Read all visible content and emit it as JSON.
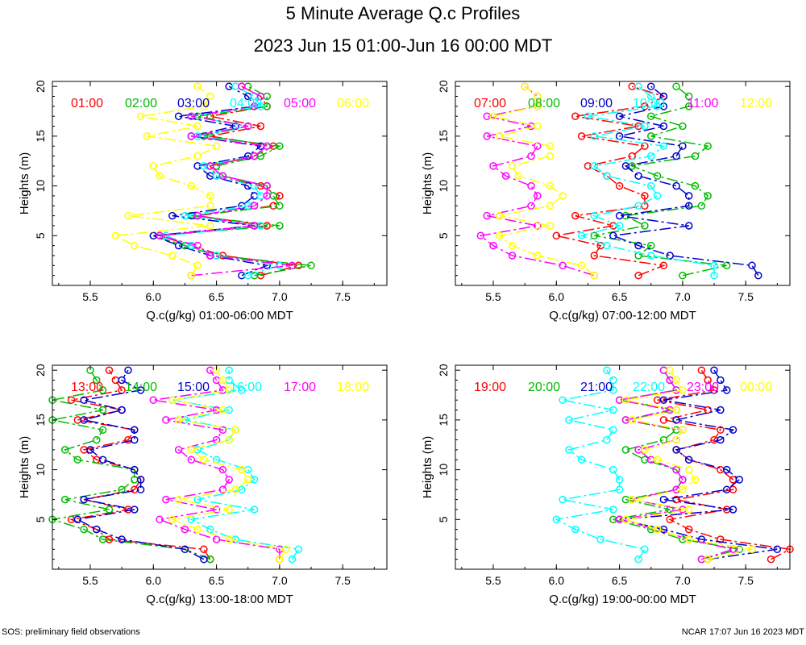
{
  "title": "5 Minute Average Q.c Profiles",
  "subtitle": "2023 Jun 15 01:00-Jun 16 00:00 MDT",
  "footer_left": "SOS: preliminary field observations",
  "footer_right": "NCAR 17:07 Jun 16 2023 MDT",
  "series_colors": [
    "#ff0000",
    "#00bb00",
    "#0000cc",
    "#00ffff",
    "#ff00ff",
    "#ffff00"
  ],
  "chart_data": [
    {
      "type": "line",
      "xlabel": "Q.c(g/kg) 01:00-06:00 MDT",
      "ylabel": "Heights (m)",
      "xlim": [
        5.2,
        7.85
      ],
      "ylim": [
        0,
        20.5
      ],
      "xticks": [
        "5.5",
        "6.0",
        "6.5",
        "7.0",
        "7.5"
      ],
      "yticks": [
        "5",
        "10",
        "15",
        "20"
      ],
      "heights": [
        1,
        2,
        3,
        4,
        5,
        6,
        7,
        8,
        9,
        10,
        11,
        12,
        13,
        14,
        15,
        16,
        17,
        18,
        19,
        20
      ],
      "series": [
        {
          "name": "01:00",
          "values": [
            6.85,
            7.15,
            6.55,
            6.3,
            6.05,
            6.9,
            6.35,
            6.95,
            7.0,
            6.85,
            6.5,
            6.45,
            6.8,
            6.95,
            6.45,
            6.85,
            6.45,
            6.9,
            6.85,
            6.7
          ]
        },
        {
          "name": "02:00",
          "values": [
            6.8,
            7.25,
            6.5,
            6.25,
            6.0,
            7.0,
            6.3,
            7.0,
            6.95,
            6.9,
            6.55,
            6.5,
            6.85,
            7.0,
            6.4,
            6.75,
            6.35,
            6.9,
            6.9,
            6.75
          ]
        },
        {
          "name": "03:00",
          "values": [
            6.7,
            6.9,
            6.45,
            6.2,
            6.0,
            6.8,
            6.15,
            6.7,
            6.8,
            6.75,
            6.45,
            6.35,
            6.75,
            6.85,
            6.3,
            6.65,
            6.2,
            6.8,
            6.75,
            6.6
          ]
        },
        {
          "name": "04:00",
          "values": [
            6.75,
            7.0,
            6.5,
            6.3,
            6.1,
            6.85,
            6.25,
            6.75,
            6.85,
            6.8,
            6.5,
            6.4,
            6.8,
            6.9,
            6.35,
            6.75,
            6.3,
            6.85,
            6.8,
            6.65
          ]
        },
        {
          "name": "05:00",
          "values": [
            6.3,
            7.1,
            6.45,
            6.35,
            6.05,
            6.8,
            6.35,
            6.8,
            6.9,
            6.9,
            6.55,
            6.45,
            6.8,
            6.9,
            6.3,
            6.75,
            6.3,
            6.8,
            6.85,
            6.7
          ]
        },
        {
          "name": "06:00",
          "values": [
            6.3,
            6.35,
            6.15,
            5.85,
            5.7,
            6.45,
            5.8,
            6.45,
            6.45,
            6.3,
            6.05,
            6.0,
            6.35,
            6.5,
            5.95,
            6.35,
            5.9,
            6.4,
            6.45,
            6.35
          ]
        }
      ]
    },
    {
      "type": "line",
      "xlabel": "Q.c(g/kg) 07:00-12:00 MDT",
      "ylabel": "Heights (m)",
      "xlim": [
        5.2,
        7.85
      ],
      "ylim": [
        0,
        20.5
      ],
      "xticks": [
        "5.5",
        "6.0",
        "6.5",
        "7.0",
        "7.5"
      ],
      "yticks": [
        "5",
        "10",
        "15",
        "20"
      ],
      "heights": [
        1,
        2,
        3,
        4,
        5,
        6,
        7,
        8,
        9,
        10,
        11,
        12,
        13,
        14,
        15,
        16,
        17,
        18,
        19,
        20
      ],
      "series": [
        {
          "name": "07:00",
          "values": [
            6.65,
            6.85,
            6.3,
            6.35,
            6.0,
            6.45,
            6.15,
            6.7,
            6.7,
            6.5,
            6.4,
            6.25,
            6.6,
            6.7,
            6.2,
            6.65,
            6.15,
            6.7,
            6.85,
            6.6
          ]
        },
        {
          "name": "08:00",
          "values": [
            7.0,
            7.35,
            6.65,
            6.75,
            6.3,
            6.7,
            6.55,
            7.15,
            7.2,
            7.1,
            6.8,
            6.6,
            7.1,
            7.2,
            6.75,
            7.0,
            6.75,
            7.05,
            7.05,
            6.95
          ]
        },
        {
          "name": "09:00",
          "values": [
            7.6,
            7.55,
            6.9,
            6.65,
            6.45,
            7.05,
            6.5,
            7.05,
            7.05,
            6.95,
            6.65,
            6.55,
            6.95,
            7.0,
            6.5,
            6.85,
            6.5,
            6.85,
            6.85,
            6.75
          ]
        },
        {
          "name": "10:00",
          "values": [
            7.25,
            7.25,
            6.75,
            6.4,
            6.2,
            6.5,
            6.3,
            6.65,
            6.8,
            6.75,
            6.4,
            6.3,
            6.75,
            6.85,
            6.3,
            6.7,
            6.25,
            6.8,
            6.75,
            6.65
          ]
        },
        {
          "name": "11:00",
          "values": [
            6.3,
            6.05,
            5.65,
            5.5,
            5.4,
            5.85,
            5.45,
            5.8,
            5.85,
            5.8,
            5.6,
            5.5,
            5.8,
            5.85,
            5.45,
            5.8,
            5.45,
            5.85,
            5.85,
            5.75
          ]
        },
        {
          "name": "12:00",
          "values": [
            6.3,
            6.2,
            5.85,
            5.65,
            5.55,
            5.95,
            5.55,
            5.95,
            6.05,
            5.95,
            5.7,
            5.65,
            5.95,
            5.95,
            5.55,
            5.85,
            5.5,
            5.85,
            5.85,
            5.75
          ]
        }
      ]
    },
    {
      "type": "line",
      "xlabel": "Q.c(g/kg) 13:00-18:00 MDT",
      "ylabel": "Heights (m)",
      "xlim": [
        5.2,
        7.85
      ],
      "ylim": [
        0,
        20.5
      ],
      "xticks": [
        "5.5",
        "6.0",
        "6.5",
        "7.0",
        "7.5"
      ],
      "yticks": [
        "5",
        "10",
        "15",
        "20"
      ],
      "heights": [
        1,
        2,
        3,
        4,
        5,
        6,
        7,
        8,
        9,
        10,
        11,
        12,
        13,
        14,
        15,
        16,
        17,
        18,
        19,
        20
      ],
      "series": [
        {
          "name": "13:00",
          "values": [
            6.45,
            6.4,
            5.65,
            5.55,
            5.35,
            5.8,
            5.45,
            5.85,
            5.9,
            5.85,
            5.55,
            5.45,
            5.8,
            5.85,
            5.4,
            5.75,
            5.35,
            5.75,
            5.7,
            5.65
          ]
        },
        {
          "name": "14:00",
          "values": [
            6.45,
            6.25,
            5.6,
            5.45,
            5.2,
            5.65,
            5.3,
            5.75,
            5.85,
            5.85,
            5.4,
            5.3,
            5.55,
            5.6,
            5.2,
            5.6,
            5.2,
            5.6,
            5.55,
            5.5
          ]
        },
        {
          "name": "15:00",
          "values": [
            6.4,
            6.25,
            5.75,
            5.55,
            5.4,
            5.85,
            5.45,
            5.9,
            5.9,
            5.85,
            5.6,
            5.5,
            5.85,
            5.85,
            5.45,
            5.75,
            5.45,
            5.9,
            5.75,
            5.8
          ]
        },
        {
          "name": "16:00",
          "values": [
            7.1,
            7.15,
            6.65,
            6.45,
            6.3,
            6.8,
            6.35,
            6.7,
            6.8,
            6.75,
            6.5,
            6.35,
            6.6,
            6.65,
            6.25,
            6.6,
            6.15,
            6.7,
            6.6,
            6.6
          ]
        },
        {
          "name": "17:00",
          "values": [
            7.0,
            7.0,
            6.5,
            6.25,
            6.05,
            6.5,
            6.1,
            6.55,
            6.6,
            6.55,
            6.3,
            6.2,
            6.5,
            6.55,
            6.1,
            6.5,
            6.0,
            6.55,
            6.5,
            6.45
          ]
        },
        {
          "name": "18:00",
          "values": [
            7.0,
            7.05,
            6.6,
            6.35,
            6.15,
            6.6,
            6.2,
            6.65,
            6.75,
            6.7,
            6.4,
            6.3,
            6.6,
            6.65,
            6.2,
            6.55,
            6.15,
            6.6,
            6.55,
            6.5
          ]
        }
      ]
    },
    {
      "type": "line",
      "xlabel": "Q.c(g/kg) 19:00-00:00 MDT",
      "ylabel": "Heights (m)",
      "xlim": [
        5.2,
        7.85
      ],
      "ylim": [
        0,
        20.5
      ],
      "xticks": [
        "5.5",
        "6.0",
        "6.5",
        "7.0",
        "7.5"
      ],
      "yticks": [
        "5",
        "10",
        "15",
        "20"
      ],
      "heights": [
        1,
        2,
        3,
        4,
        5,
        6,
        7,
        8,
        9,
        10,
        11,
        12,
        13,
        14,
        15,
        16,
        17,
        18,
        19,
        20
      ],
      "series": [
        {
          "name": "19:00",
          "values": [
            7.7,
            7.85,
            7.3,
            7.05,
            6.9,
            7.35,
            6.95,
            7.4,
            7.4,
            7.3,
            7.05,
            6.95,
            7.25,
            7.3,
            6.85,
            7.2,
            6.8,
            7.25,
            7.2,
            7.15
          ]
        },
        {
          "name": "20:00",
          "values": [
            7.15,
            7.45,
            7.0,
            6.75,
            6.45,
            6.9,
            6.55,
            6.95,
            7.0,
            6.95,
            6.7,
            6.55,
            6.85,
            6.95,
            6.55,
            6.95,
            6.5,
            6.95,
            6.9,
            6.85
          ]
        },
        {
          "name": "21:00",
          "values": [
            7.2,
            7.75,
            7.15,
            6.85,
            6.5,
            7.4,
            6.85,
            7.35,
            7.45,
            7.35,
            7.05,
            6.95,
            7.3,
            7.4,
            6.95,
            7.3,
            6.85,
            7.35,
            7.3,
            7.25
          ]
        },
        {
          "name": "22:00",
          "values": [
            6.65,
            6.7,
            6.35,
            6.15,
            6.0,
            6.45,
            6.05,
            6.5,
            6.5,
            6.45,
            6.2,
            6.1,
            6.4,
            6.45,
            6.1,
            6.45,
            6.05,
            6.45,
            6.45,
            6.4
          ]
        },
        {
          "name": "23:00",
          "values": [
            7.15,
            7.4,
            7.05,
            6.8,
            6.5,
            7.0,
            6.6,
            6.95,
            7.0,
            6.95,
            6.75,
            6.65,
            6.95,
            7.0,
            6.55,
            6.9,
            6.5,
            6.95,
            6.9,
            6.85
          ]
        },
        {
          "name": "00:00",
          "values": [
            7.2,
            7.55,
            7.05,
            6.8,
            6.55,
            7.05,
            6.6,
            7.0,
            7.1,
            7.05,
            6.8,
            6.7,
            6.95,
            7.0,
            6.6,
            6.95,
            6.55,
            7.0,
            6.95,
            6.9
          ]
        }
      ]
    }
  ]
}
